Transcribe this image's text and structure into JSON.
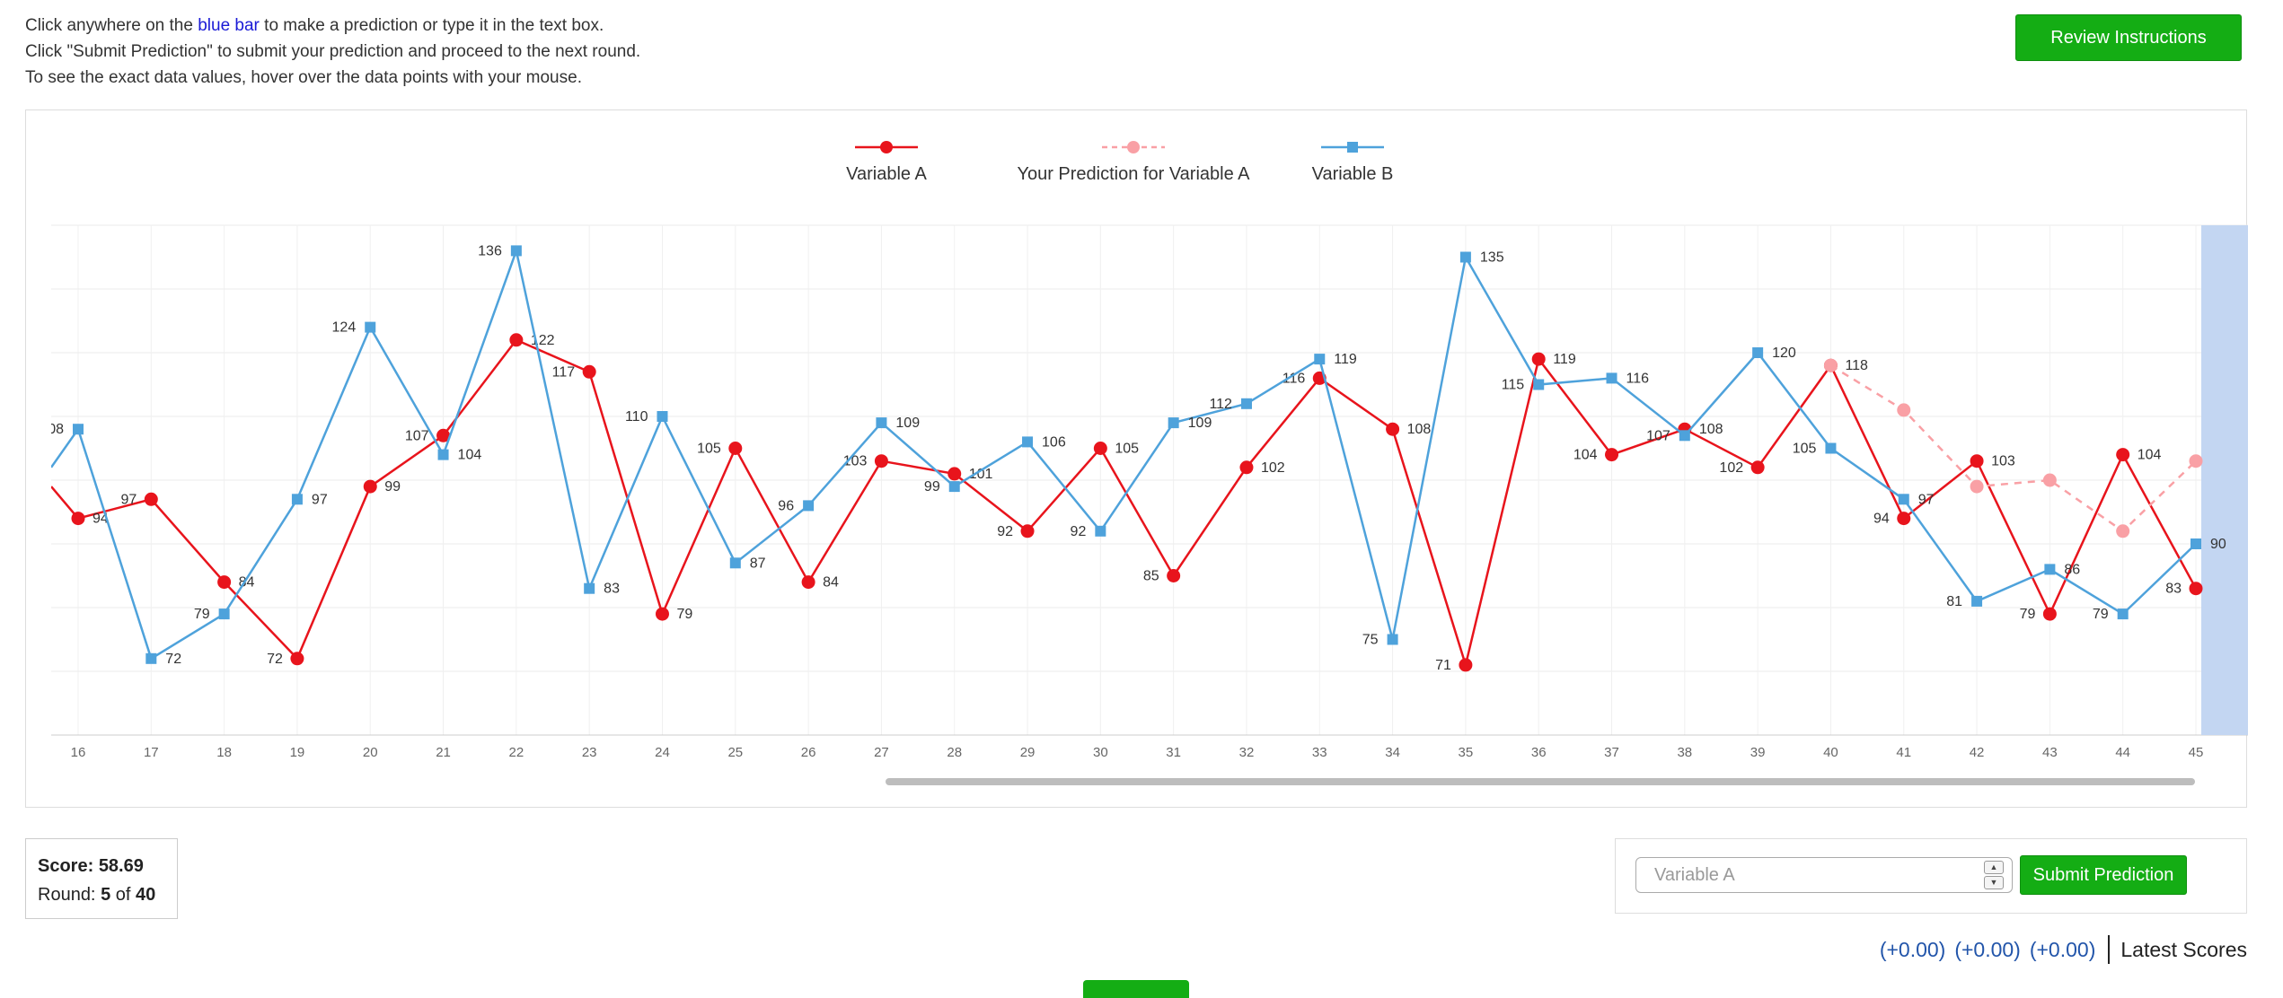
{
  "instructions": {
    "line1_prefix": "Click anywhere on the ",
    "line1_link": "blue bar",
    "line1_suffix": " to make a prediction or type it in the text box.",
    "line2": "Click \"Submit Prediction\" to submit your prediction and proceed to the next round.",
    "line3": "To see the exact data values, hover over the data points with your mouse."
  },
  "review_button": "Review Instructions",
  "score": {
    "label": "Score:",
    "value": "58.69"
  },
  "round": {
    "label": "Round:",
    "current": "5",
    "of": "of",
    "total": "40"
  },
  "input": {
    "placeholder": "Variable A"
  },
  "submit_button": "Submit Prediction",
  "latest_scores": {
    "deltas": [
      "(+0.00)",
      "(+0.00)",
      "(+0.00)"
    ],
    "label": "Latest Scores"
  },
  "colors": {
    "variable_a": "#e8141c",
    "prediction": "#f9a0a5",
    "variable_b": "#4ea2db",
    "blue_bar": "#c3d6f2",
    "button": "#14ad14"
  },
  "chart_data": {
    "type": "line",
    "legend": [
      "Variable A",
      "Your Prediction for Variable A",
      "Variable B"
    ],
    "x": [
      16,
      17,
      18,
      19,
      20,
      21,
      22,
      23,
      24,
      25,
      26,
      27,
      28,
      29,
      30,
      31,
      32,
      33,
      34,
      35,
      36,
      37,
      38,
      39,
      40,
      41,
      42,
      43,
      44,
      45
    ],
    "xlim": [
      15.6,
      45
    ],
    "ylim": [
      60,
      140
    ],
    "grid": true,
    "legend_position": "top-center",
    "series": [
      {
        "name": "Variable A",
        "marker": "circle",
        "line": "solid",
        "first_y": 99,
        "x": [
          16,
          17,
          18,
          19,
          20,
          21,
          22,
          23,
          24,
          25,
          26,
          27,
          28,
          29,
          30,
          31,
          32,
          33,
          34,
          35,
          36,
          37,
          38,
          39,
          40,
          41,
          42,
          43,
          44,
          45
        ],
        "y": [
          94,
          97,
          84,
          72,
          99,
          107,
          122,
          117,
          79,
          105,
          84,
          103,
          101,
          92,
          105,
          85,
          102,
          116,
          108,
          71,
          119,
          104,
          108,
          102,
          118,
          94,
          103,
          79,
          104,
          83
        ]
      },
      {
        "name": "Your Prediction for Variable A",
        "marker": "circle",
        "line": "dashed",
        "x": [
          40,
          41,
          42,
          43,
          44,
          45
        ],
        "y": [
          118,
          111,
          99,
          100,
          92,
          103
        ]
      },
      {
        "name": "Variable B",
        "marker": "square",
        "line": "solid",
        "first_y": 102,
        "x": [
          16,
          17,
          18,
          19,
          20,
          21,
          22,
          23,
          24,
          25,
          26,
          27,
          28,
          29,
          30,
          31,
          32,
          33,
          34,
          35,
          36,
          37,
          38,
          39,
          40,
          41,
          42,
          43,
          44,
          45
        ],
        "y": [
          108,
          72,
          79,
          97,
          124,
          104,
          136,
          83,
          110,
          87,
          96,
          109,
          99,
          106,
          92,
          109,
          112,
          119,
          75,
          135,
          115,
          116,
          107,
          120,
          105,
          97,
          81,
          86,
          79,
          90
        ]
      }
    ]
  }
}
